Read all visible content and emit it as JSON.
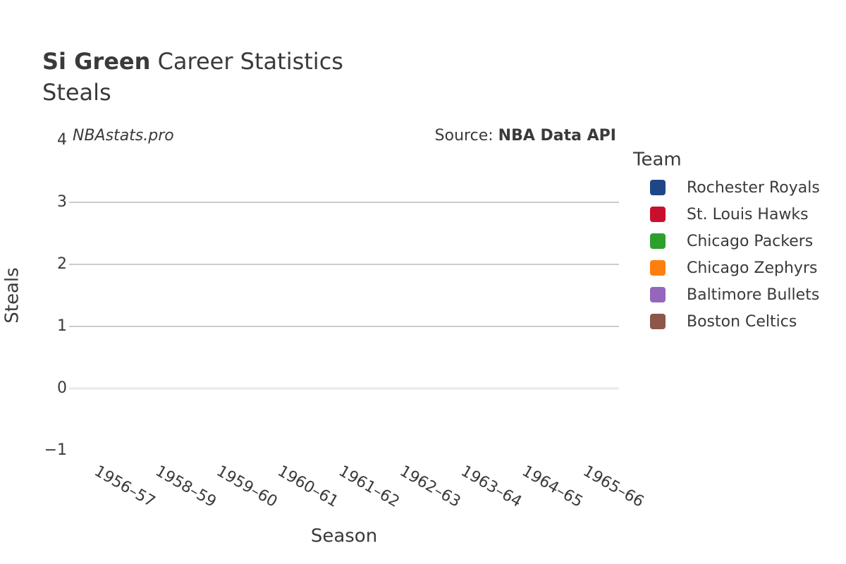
{
  "chart_data": {
    "type": "line",
    "title_name": "Si Green",
    "title": "Career Statistics",
    "subtitle": "Steals",
    "watermark": "NBAstats.pro",
    "source_label": "Source:",
    "source": "NBA Data API",
    "x_label": "Season",
    "y_label": "Steals",
    "legend_title": "Team",
    "categories": [
      "1956–57",
      "1958–59",
      "1959–60",
      "1960–61",
      "1961–62",
      "1962–63",
      "1963–64",
      "1964–65",
      "1965–66"
    ],
    "series": [
      {
        "name": "Rochester Royals",
        "color": "#1f4788",
        "values": [
          null,
          null,
          null,
          null,
          null,
          null,
          null,
          null,
          null
        ]
      },
      {
        "name": "St. Louis Hawks",
        "color": "#c8102e",
        "values": [
          null,
          null,
          null,
          null,
          null,
          null,
          null,
          null,
          null
        ]
      },
      {
        "name": "Chicago Packers",
        "color": "#2ca02c",
        "values": [
          null,
          null,
          null,
          null,
          null,
          null,
          null,
          null,
          null
        ]
      },
      {
        "name": "Chicago Zephyrs",
        "color": "#ff7f0e",
        "values": [
          null,
          null,
          null,
          null,
          null,
          null,
          null,
          null,
          null
        ]
      },
      {
        "name": "Baltimore Bullets",
        "color": "#9467bd",
        "values": [
          null,
          null,
          null,
          null,
          null,
          null,
          null,
          null,
          null
        ]
      },
      {
        "name": "Boston Celtics",
        "color": "#8c564b",
        "values": [
          null,
          null,
          null,
          null,
          null,
          null,
          null,
          null,
          null
        ]
      }
    ],
    "ylim": [
      -1,
      4
    ],
    "yticks": [
      {
        "value": -1,
        "label": "−1"
      },
      0,
      1,
      2,
      3,
      4
    ],
    "grid": true,
    "legend": "right"
  }
}
